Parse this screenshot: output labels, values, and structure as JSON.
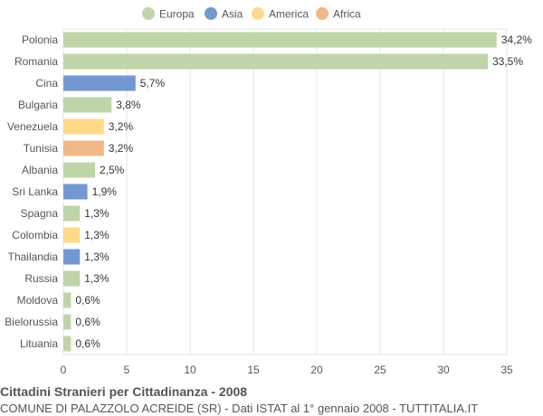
{
  "chart_data": {
    "type": "bar",
    "orientation": "horizontal",
    "title": "Cittadini Stranieri per Cittadinanza - 2008",
    "subtitle": "COMUNE DI PALAZZOLO ACREIDE (SR) - Dati ISTAT al 1° gennaio 2008 - TUTTITALIA.IT",
    "categories": [
      "Polonia",
      "Romania",
      "Cina",
      "Bulgaria",
      "Venezuela",
      "Tunisia",
      "Albania",
      "Sri Lanka",
      "Spagna",
      "Colombia",
      "Thailandia",
      "Russia",
      "Moldova",
      "Bielorussia",
      "Lituania"
    ],
    "values": [
      34.2,
      33.5,
      5.7,
      3.8,
      3.2,
      3.2,
      2.5,
      1.9,
      1.3,
      1.3,
      1.3,
      1.3,
      0.6,
      0.6,
      0.6
    ],
    "value_labels": [
      "34,2%",
      "33,5%",
      "5,7%",
      "3,8%",
      "3,2%",
      "3,2%",
      "2,5%",
      "1,9%",
      "1,3%",
      "1,3%",
      "1,3%",
      "1,3%",
      "0,6%",
      "0,6%",
      "0,6%"
    ],
    "continent": [
      "Europa",
      "Europa",
      "Asia",
      "Europa",
      "America",
      "Africa",
      "Europa",
      "Asia",
      "Europa",
      "America",
      "Asia",
      "Europa",
      "Europa",
      "Europa",
      "Europa"
    ],
    "legend": [
      {
        "name": "Europa",
        "color": "#bfd4a8"
      },
      {
        "name": "Asia",
        "color": "#7597d1"
      },
      {
        "name": "America",
        "color": "#fdd98a"
      },
      {
        "name": "Africa",
        "color": "#f0b887"
      }
    ],
    "legend_position": "top-center",
    "xlim": [
      0,
      35
    ],
    "xticks": [
      0,
      5,
      10,
      15,
      20,
      25,
      30,
      35
    ],
    "xlabel": "",
    "ylabel": "",
    "grid": true
  }
}
